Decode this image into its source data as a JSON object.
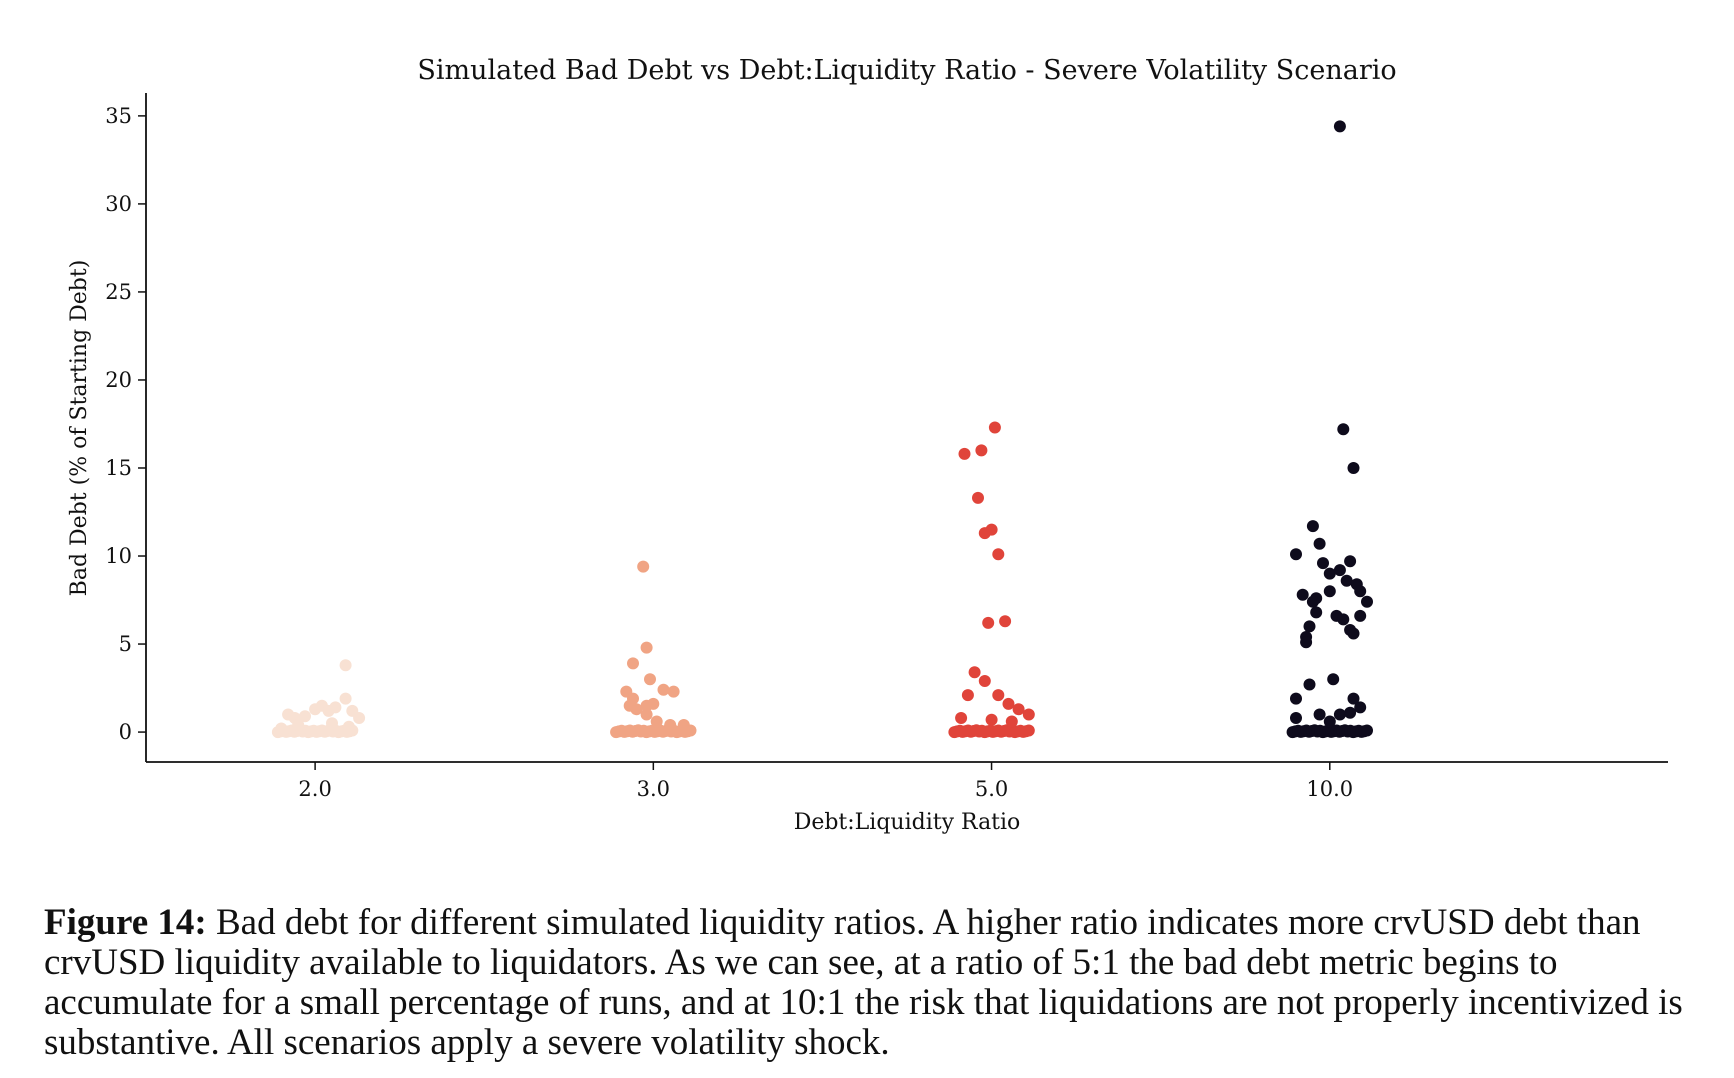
{
  "chart_data": {
    "type": "scatter",
    "title": "Simulated Bad Debt vs Debt:Liquidity Ratio - Severe Volatility Scenario",
    "xlabel": "Debt:Liquidity Ratio",
    "ylabel": "Bad Debt (% of Starting Debt)",
    "categories": [
      "2.0",
      "3.0",
      "5.0",
      "10.0"
    ],
    "ylim": [
      -1.7,
      36.3
    ],
    "yticks": [
      0,
      5,
      10,
      15,
      20,
      25,
      30,
      35
    ],
    "grid": false,
    "series": [
      {
        "category": "2.0",
        "color": "#f8e1d3",
        "points": [
          [
            -0.08,
            1.0
          ],
          [
            -0.06,
            0.8
          ],
          [
            -0.03,
            0.9
          ],
          [
            0.0,
            1.3
          ],
          [
            0.02,
            1.5
          ],
          [
            0.04,
            1.2
          ],
          [
            0.06,
            1.4
          ],
          [
            0.09,
            1.9
          ],
          [
            0.11,
            1.2
          ],
          [
            0.13,
            0.8
          ],
          [
            0.09,
            3.8
          ],
          [
            -0.05,
            0.4
          ],
          [
            0.05,
            0.5
          ],
          [
            -0.1,
            0.2
          ],
          [
            0.1,
            0.3
          ]
        ]
      },
      {
        "category": "3.0",
        "color": "#f0a484",
        "points": [
          [
            -0.03,
            9.4
          ],
          [
            -0.02,
            4.8
          ],
          [
            -0.06,
            3.9
          ],
          [
            -0.01,
            3.0
          ],
          [
            0.03,
            2.4
          ],
          [
            0.06,
            2.3
          ],
          [
            -0.08,
            2.3
          ],
          [
            -0.06,
            1.9
          ],
          [
            -0.07,
            1.5
          ],
          [
            -0.05,
            1.3
          ],
          [
            -0.02,
            1.5
          ],
          [
            0.0,
            1.6
          ],
          [
            -0.02,
            1.0
          ],
          [
            0.01,
            0.6
          ],
          [
            0.05,
            0.4
          ],
          [
            0.09,
            0.4
          ]
        ]
      },
      {
        "category": "5.0",
        "color": "#e0443a",
        "points": [
          [
            0.01,
            17.3
          ],
          [
            -0.08,
            15.8
          ],
          [
            -0.03,
            16.0
          ],
          [
            -0.04,
            13.3
          ],
          [
            -0.02,
            11.3
          ],
          [
            0.0,
            11.5
          ],
          [
            0.02,
            10.1
          ],
          [
            -0.01,
            6.2
          ],
          [
            0.04,
            6.3
          ],
          [
            -0.05,
            3.4
          ],
          [
            -0.02,
            2.9
          ],
          [
            -0.07,
            2.1
          ],
          [
            0.02,
            2.1
          ],
          [
            0.05,
            1.6
          ],
          [
            0.08,
            1.3
          ],
          [
            0.11,
            1.0
          ],
          [
            -0.09,
            0.8
          ],
          [
            0.0,
            0.7
          ],
          [
            0.06,
            0.6
          ]
        ]
      },
      {
        "category": "10.0",
        "color": "#0e0b1c",
        "points": [
          [
            0.03,
            34.4
          ],
          [
            0.04,
            17.2
          ],
          [
            0.07,
            15.0
          ],
          [
            -0.05,
            11.7
          ],
          [
            -0.1,
            10.1
          ],
          [
            -0.03,
            10.7
          ],
          [
            -0.02,
            9.6
          ],
          [
            0.0,
            9.0
          ],
          [
            0.03,
            9.2
          ],
          [
            0.06,
            9.7
          ],
          [
            0.05,
            8.6
          ],
          [
            0.08,
            8.4
          ],
          [
            0.09,
            8.0
          ],
          [
            0.11,
            7.4
          ],
          [
            -0.08,
            7.8
          ],
          [
            -0.04,
            7.6
          ],
          [
            -0.05,
            7.4
          ],
          [
            0.0,
            8.0
          ],
          [
            0.02,
            6.6
          ],
          [
            0.04,
            6.4
          ],
          [
            -0.04,
            6.8
          ],
          [
            0.06,
            5.8
          ],
          [
            0.07,
            5.6
          ],
          [
            0.09,
            6.6
          ],
          [
            -0.06,
            6.0
          ],
          [
            -0.07,
            5.4
          ],
          [
            -0.07,
            5.1
          ],
          [
            -0.1,
            1.9
          ],
          [
            -0.06,
            2.7
          ],
          [
            0.01,
            3.0
          ],
          [
            0.07,
            1.9
          ],
          [
            0.09,
            1.4
          ],
          [
            -0.03,
            1.0
          ],
          [
            0.03,
            1.0
          ],
          [
            0.06,
            1.1
          ],
          [
            -0.1,
            0.8
          ],
          [
            0.0,
            0.6
          ]
        ]
      }
    ]
  },
  "caption": {
    "label": "Figure 14:",
    "text": " Bad debt for different simulated liquidity ratios. A higher ratio indicates more crvUSD debt than crvUSD liquidity available to liquidators. As we can see, at a ratio of 5:1 the bad debt metric begins to accumulate for a small percentage of runs, and at 10:1 the risk that liquidations are not properly incentivized is substantive. All scenarios apply a severe volatility shock."
  }
}
